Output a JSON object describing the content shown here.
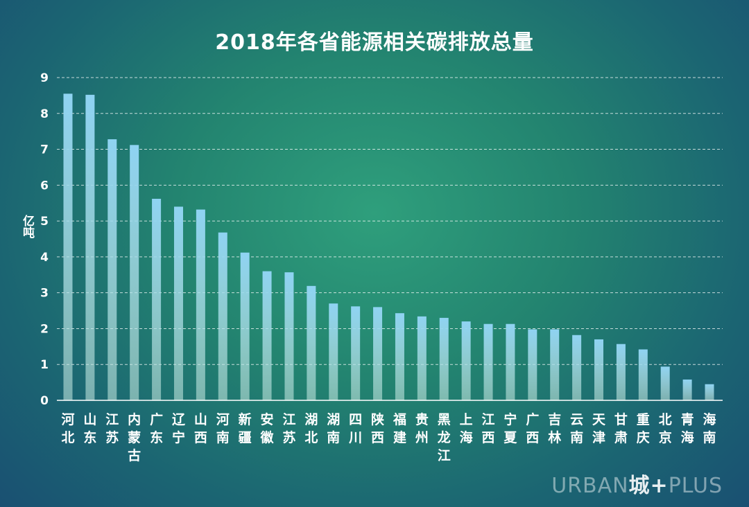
{
  "watermark": {
    "left": "URBAN",
    "mid": "城+",
    "right": "PLUS"
  },
  "chart_data": {
    "type": "bar",
    "title": "2018年各省能源相关碳排放总量",
    "ylabel": "亿吨",
    "xlabel": "",
    "ylim": [
      0,
      9
    ],
    "yticks": [
      0,
      1,
      2,
      3,
      4,
      5,
      6,
      7,
      8,
      9
    ],
    "grid": true,
    "bar_color_top": "#8fd3f2",
    "bar_color_bottom": "#c9ebe2",
    "categories": [
      "河北",
      "山东",
      "江苏",
      "内蒙古",
      "广东",
      "辽宁",
      "山西",
      "河南",
      "新疆",
      "安徽",
      "江苏",
      "湖北",
      "湖南",
      "四川",
      "陕西",
      "福建",
      "贵州",
      "黑龙江",
      "上海",
      "江西",
      "宁夏",
      "广西",
      "吉林",
      "云南",
      "天津",
      "甘肃",
      "重庆",
      "北京",
      "青海",
      "海南"
    ],
    "values": [
      8.55,
      8.52,
      7.28,
      7.12,
      5.62,
      5.4,
      5.32,
      4.68,
      4.12,
      3.6,
      3.57,
      3.19,
      2.7,
      2.62,
      2.6,
      2.43,
      2.34,
      2.3,
      2.2,
      2.13,
      2.13,
      1.98,
      1.98,
      1.82,
      1.7,
      1.57,
      1.42,
      0.94,
      0.58,
      0.45
    ]
  }
}
